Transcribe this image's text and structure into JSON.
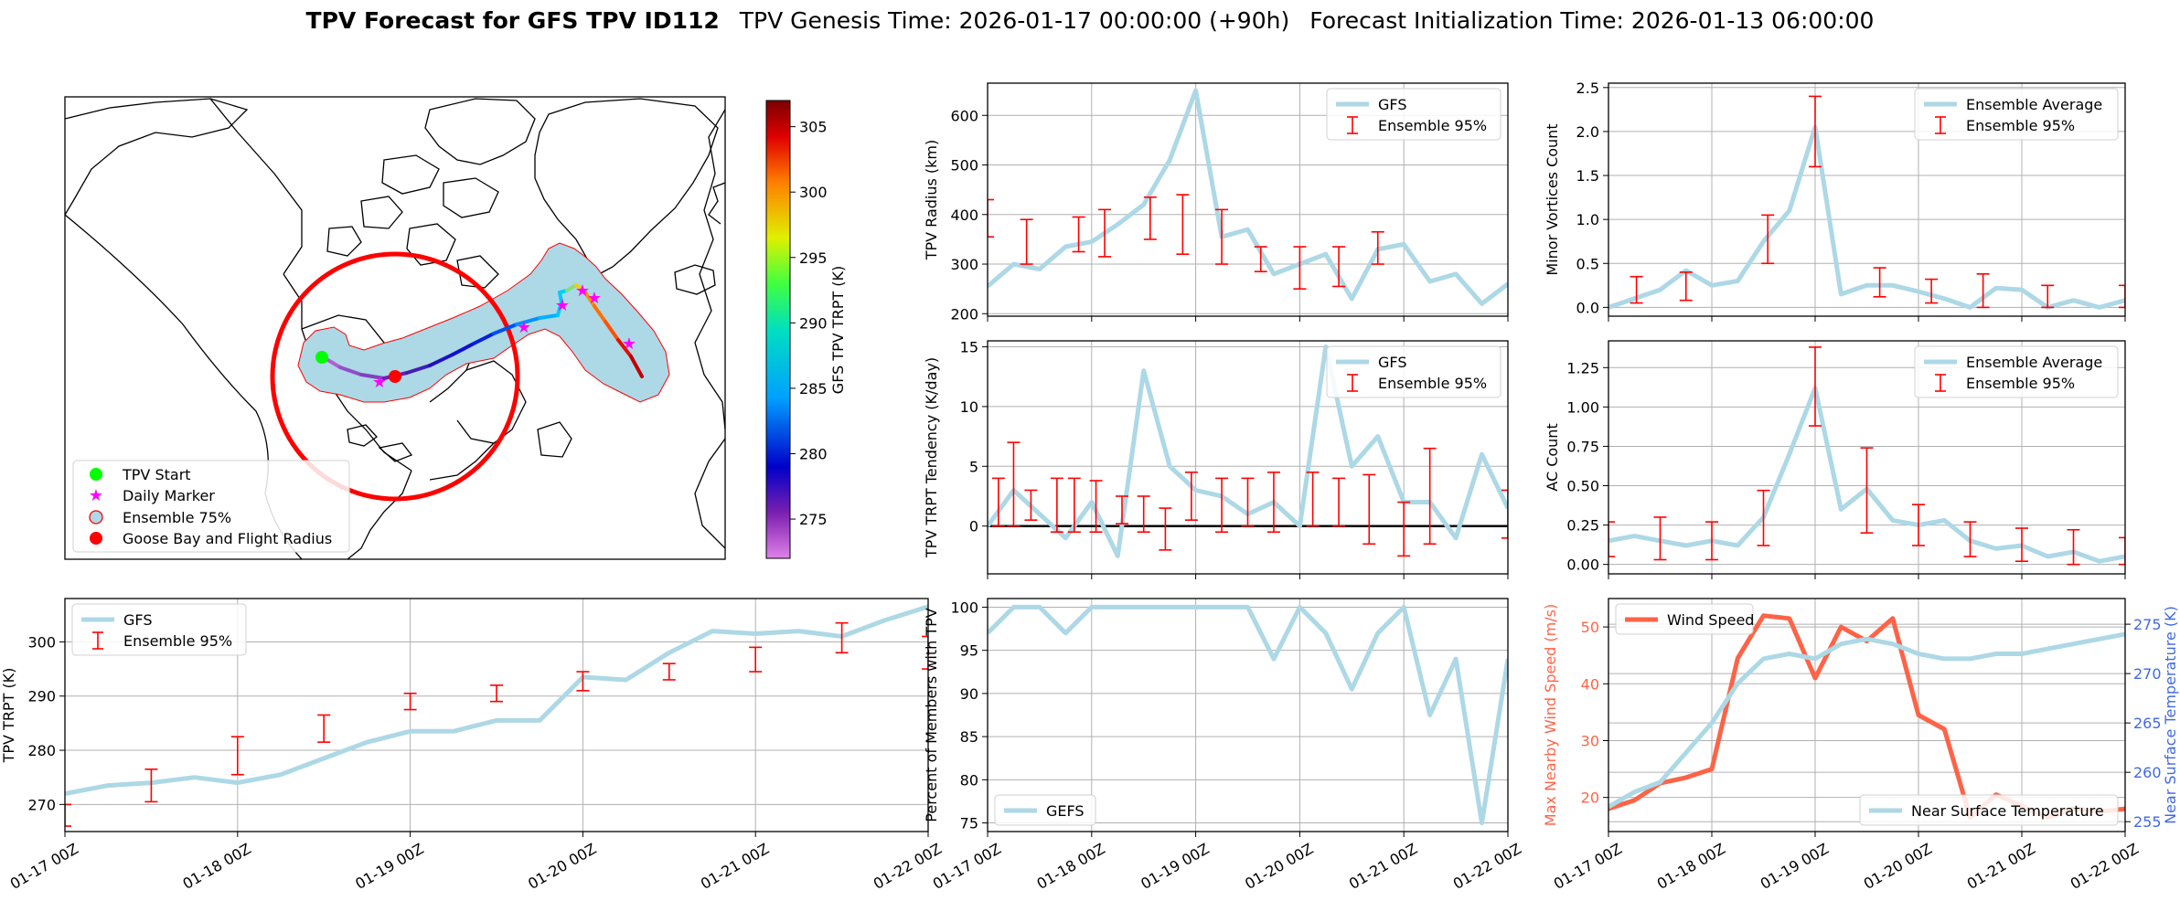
{
  "header": {
    "title_bold": "TPV Forecast for GFS TPV ID112",
    "genesis": "TPV Genesis Time: 2026-01-17 00:00:00 (+90h)",
    "init": "Forecast Initialization Time: 2026-01-13 06:00:00"
  },
  "colors": {
    "gfs_line": "#add8e6",
    "errorbar": "#ff0000",
    "wind_line": "#ff6347",
    "temp_axis": "#4169e1",
    "wind_axis": "#ff6347",
    "ocean_region": "#add8e6",
    "flight_radius": "#ff0000"
  },
  "map": {
    "legend": [
      "TPV Start",
      "Daily Marker",
      "Ensemble 75%",
      "Goose Bay and Flight Radius"
    ],
    "colorbar": {
      "label": "GFS TPV TRPT (K)",
      "ticks": [
        275,
        280,
        285,
        290,
        295,
        300,
        305
      ],
      "range": [
        272,
        307
      ]
    }
  },
  "time_ticks": [
    "01-17 00Z",
    "01-18 00Z",
    "01-19 00Z",
    "01-20 00Z",
    "01-21 00Z",
    "01-22 00Z"
  ],
  "chart_data": [
    {
      "id": "radius",
      "type": "line",
      "ylabel": "TPV Radius (km)",
      "ylim": [
        195,
        665
      ],
      "yticks": [
        200,
        300,
        400,
        500,
        600
      ],
      "legend": [
        "GFS",
        "Ensemble 95%"
      ],
      "x_hours": [
        0,
        6,
        12,
        18,
        24,
        30,
        36,
        42,
        48,
        54,
        60,
        66,
        72,
        78,
        84,
        90,
        96,
        102,
        108,
        114,
        120
      ],
      "values": [
        255,
        300,
        290,
        335,
        345,
        380,
        420,
        510,
        650,
        355,
        370,
        280,
        300,
        320,
        230,
        330,
        340,
        265,
        280,
        220,
        260
      ],
      "errorbars": [
        {
          "x": 0,
          "low": 355,
          "high": 430
        },
        {
          "x": 9,
          "low": 300,
          "high": 390
        },
        {
          "x": 21,
          "low": 325,
          "high": 395
        },
        {
          "x": 27,
          "low": 315,
          "high": 410
        },
        {
          "x": 37.5,
          "low": 350,
          "high": 435
        },
        {
          "x": 45,
          "low": 320,
          "high": 440
        },
        {
          "x": 54,
          "low": 300,
          "high": 410
        },
        {
          "x": 63,
          "low": 285,
          "high": 335
        },
        {
          "x": 72,
          "low": 250,
          "high": 335
        },
        {
          "x": 81,
          "low": 255,
          "high": 335
        },
        {
          "x": 90,
          "low": 300,
          "high": 365
        }
      ]
    },
    {
      "id": "minor",
      "type": "line",
      "ylabel": "Minor Vortices Count",
      "ylim": [
        -0.1,
        2.55
      ],
      "yticks": [
        0.0,
        0.5,
        1.0,
        1.5,
        2.0,
        2.5
      ],
      "ytick_labels": [
        "0.0",
        "0.5",
        "1.0",
        "1.5",
        "2.0",
        "2.5"
      ],
      "legend": [
        "Ensemble Average",
        "Ensemble 95%"
      ],
      "x_hours": [
        0,
        6,
        12,
        18,
        24,
        30,
        36,
        42,
        48,
        54,
        60,
        66,
        72,
        78,
        84,
        90,
        96,
        102,
        108,
        114,
        120
      ],
      "values": [
        0.0,
        0.1,
        0.2,
        0.42,
        0.25,
        0.3,
        0.75,
        1.1,
        2.05,
        0.15,
        0.25,
        0.25,
        0.18,
        0.1,
        0.0,
        0.22,
        0.2,
        0.0,
        0.08,
        0.0,
        0.08
      ],
      "errorbars": [
        {
          "x": 6.5,
          "low": 0.05,
          "high": 0.35
        },
        {
          "x": 18,
          "low": 0.08,
          "high": 0.4
        },
        {
          "x": 37,
          "low": 0.5,
          "high": 1.05
        },
        {
          "x": 48,
          "low": 1.6,
          "high": 2.4
        },
        {
          "x": 63,
          "low": 0.12,
          "high": 0.45
        },
        {
          "x": 75,
          "low": 0.05,
          "high": 0.32
        },
        {
          "x": 87,
          "low": 0.0,
          "high": 0.38
        },
        {
          "x": 102,
          "low": 0.0,
          "high": 0.25
        },
        {
          "x": 120,
          "low": 0.0,
          "high": 0.25
        }
      ]
    },
    {
      "id": "tendency",
      "type": "line",
      "ylabel": "TPV TRPT Tendency (K/day)",
      "ylim": [
        -4,
        15.5
      ],
      "yticks": [
        0,
        5,
        10,
        15
      ],
      "legend": [
        "GFS",
        "Ensemble 95%"
      ],
      "x_hours": [
        0,
        6,
        12,
        18,
        24,
        30,
        36,
        42,
        48,
        54,
        60,
        66,
        72,
        78,
        84,
        90,
        96,
        102,
        108,
        114,
        120
      ],
      "values": [
        0,
        3,
        1,
        -1,
        2,
        -2.5,
        13,
        5,
        3,
        2.5,
        1,
        2,
        0,
        15,
        5,
        7.5,
        2,
        2,
        -1,
        6,
        1.5
      ],
      "errorbars": [
        {
          "x": 2.5,
          "low": 0,
          "high": 4
        },
        {
          "x": 6,
          "low": 0,
          "high": 7
        },
        {
          "x": 10,
          "low": 0.5,
          "high": 3
        },
        {
          "x": 16,
          "low": -0.5,
          "high": 4
        },
        {
          "x": 20,
          "low": -0.5,
          "high": 4
        },
        {
          "x": 25,
          "low": -0.5,
          "high": 3.8
        },
        {
          "x": 31,
          "low": 0.2,
          "high": 2.5
        },
        {
          "x": 36,
          "low": -0.5,
          "high": 2.5
        },
        {
          "x": 41,
          "low": -2,
          "high": 1.5
        },
        {
          "x": 47,
          "low": 0.5,
          "high": 4.5
        },
        {
          "x": 54,
          "low": -0.5,
          "high": 4
        },
        {
          "x": 60,
          "low": 0,
          "high": 4
        },
        {
          "x": 66,
          "low": -0.5,
          "high": 4.5
        },
        {
          "x": 75,
          "low": 0,
          "high": 4.5
        },
        {
          "x": 81,
          "low": 0,
          "high": 4
        },
        {
          "x": 88,
          "low": -1.5,
          "high": 4.3
        },
        {
          "x": 96,
          "low": -2.5,
          "high": 2
        },
        {
          "x": 102,
          "low": -1.5,
          "high": 6.5
        },
        {
          "x": 120,
          "low": -1,
          "high": 3
        }
      ],
      "zero_line": true
    },
    {
      "id": "ac",
      "type": "line",
      "ylabel": "AC Count",
      "ylim": [
        -0.06,
        1.42
      ],
      "yticks": [
        0.0,
        0.25,
        0.5,
        0.75,
        1.0,
        1.25
      ],
      "ytick_labels": [
        "0.00",
        "0.25",
        "0.50",
        "0.75",
        "1.00",
        "1.25"
      ],
      "legend": [
        "Ensemble Average",
        "Ensemble 95%"
      ],
      "x_hours": [
        0,
        6,
        12,
        18,
        24,
        30,
        36,
        42,
        48,
        54,
        60,
        66,
        72,
        78,
        84,
        90,
        96,
        102,
        108,
        114,
        120
      ],
      "values": [
        0.15,
        0.18,
        0.15,
        0.12,
        0.15,
        0.12,
        0.3,
        0.7,
        1.12,
        0.35,
        0.48,
        0.28,
        0.25,
        0.28,
        0.15,
        0.1,
        0.12,
        0.05,
        0.08,
        0.02,
        0.05
      ],
      "errorbars": [
        {
          "x": 0,
          "low": 0.05,
          "high": 0.27
        },
        {
          "x": 12,
          "low": 0.03,
          "high": 0.3
        },
        {
          "x": 24,
          "low": 0.03,
          "high": 0.27
        },
        {
          "x": 36,
          "low": 0.12,
          "high": 0.47
        },
        {
          "x": 48,
          "low": 0.88,
          "high": 1.38
        },
        {
          "x": 60,
          "low": 0.2,
          "high": 0.74
        },
        {
          "x": 72,
          "low": 0.12,
          "high": 0.38
        },
        {
          "x": 84,
          "low": 0.05,
          "high": 0.27
        },
        {
          "x": 96,
          "low": 0.02,
          "high": 0.23
        },
        {
          "x": 108,
          "low": 0.0,
          "high": 0.22
        },
        {
          "x": 120,
          "low": 0.0,
          "high": 0.17
        }
      ]
    },
    {
      "id": "trpt",
      "type": "line",
      "ylabel": "TPV TRPT (K)",
      "ylim": [
        265,
        308
      ],
      "yticks": [
        270,
        280,
        290,
        300
      ],
      "legend": [
        "GFS",
        "Ensemble 95%"
      ],
      "x_hours": [
        0,
        6,
        12,
        18,
        24,
        30,
        36,
        42,
        48,
        54,
        60,
        66,
        72,
        78,
        84,
        90,
        96,
        102,
        108,
        114,
        120
      ],
      "values": [
        272,
        273.5,
        274,
        275,
        274,
        275.5,
        278.5,
        281.5,
        283.5,
        283.5,
        285.5,
        285.5,
        293.5,
        293,
        298,
        302,
        301.5,
        302,
        301,
        304,
        306.5
      ],
      "errorbars": [
        {
          "x": 0,
          "low": 266,
          "high": 270
        },
        {
          "x": 12,
          "low": 270.5,
          "high": 276.5
        },
        {
          "x": 24,
          "low": 275.5,
          "high": 282.5
        },
        {
          "x": 36,
          "low": 281.5,
          "high": 286.5
        },
        {
          "x": 48,
          "low": 287.5,
          "high": 290.5
        },
        {
          "x": 60,
          "low": 289,
          "high": 292
        },
        {
          "x": 72,
          "low": 291,
          "high": 294.5
        },
        {
          "x": 84,
          "low": 293,
          "high": 296
        },
        {
          "x": 96,
          "low": 294.5,
          "high": 299
        },
        {
          "x": 108,
          "low": 298,
          "high": 303.5
        },
        {
          "x": 120,
          "low": 295,
          "high": 301
        }
      ]
    },
    {
      "id": "percent",
      "type": "line",
      "ylabel": "Percent of Members with TPV",
      "ylim": [
        74,
        101
      ],
      "yticks": [
        75,
        80,
        85,
        90,
        95,
        100
      ],
      "legend": [
        "GEFS"
      ],
      "x_hours": [
        0,
        6,
        12,
        18,
        24,
        30,
        36,
        42,
        48,
        54,
        60,
        66,
        72,
        78,
        84,
        90,
        96,
        102,
        108,
        114,
        120
      ],
      "values": [
        97,
        100,
        100,
        97,
        100,
        100,
        100,
        100,
        100,
        100,
        100,
        94,
        100,
        97,
        90.5,
        97,
        100,
        87.5,
        94,
        75,
        94
      ]
    },
    {
      "id": "wind_temp",
      "type": "line",
      "ylabel_left": "Max Nearby Wind Speed (m/s)",
      "ylabel_right": "Near Surface Temperature (K)",
      "ylim_left": [
        14,
        55
      ],
      "ylim_right": [
        254,
        277.6
      ],
      "yticks_left": [
        20,
        30,
        40,
        50
      ],
      "yticks_right": [
        255,
        260,
        265,
        270,
        275
      ],
      "x_hours": [
        0,
        6,
        12,
        18,
        24,
        30,
        36,
        42,
        48,
        54,
        60,
        66,
        72,
        78,
        84,
        90,
        96,
        102,
        108,
        114,
        120
      ],
      "series": [
        {
          "name": "Wind Speed",
          "axis": "left",
          "values": [
            18,
            19.5,
            22.5,
            23.5,
            25,
            44.5,
            52,
            51.5,
            41,
            50,
            47.5,
            51.5,
            34.5,
            32,
            16.5,
            20.5,
            18.5,
            16.5,
            18,
            17.5,
            18
          ]
        },
        {
          "name": "Near Surface Temperature",
          "axis": "right",
          "values": [
            256.5,
            258,
            259,
            262,
            265,
            269,
            271.5,
            272,
            271.5,
            273,
            273.5,
            273,
            272,
            271.5,
            271.5,
            272,
            272,
            272.5,
            273,
            273.5,
            274
          ]
        }
      ]
    }
  ]
}
